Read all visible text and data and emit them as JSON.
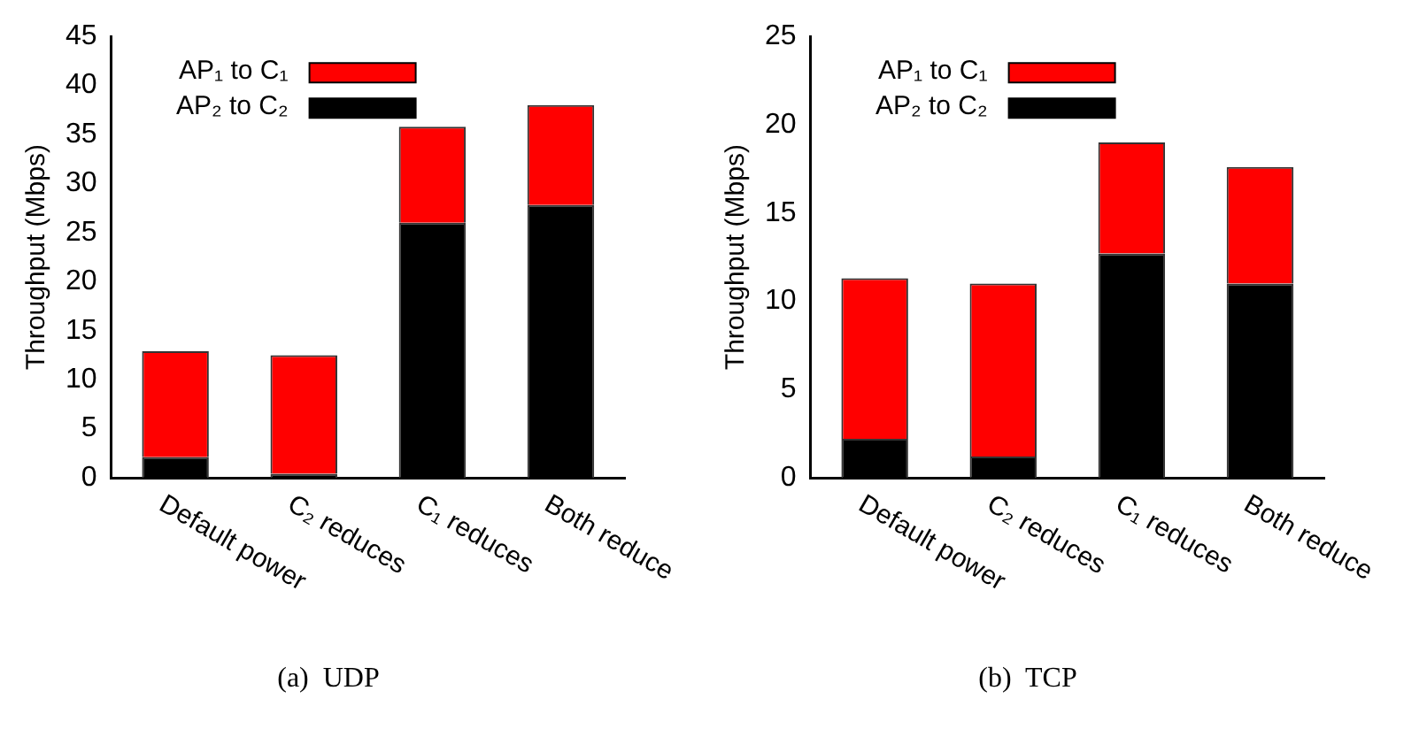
{
  "chart_data": [
    {
      "type": "bar",
      "stacked": true,
      "ylabel": "Throughput (Mbps)",
      "categories": [
        "Default power",
        "C₂ reduces",
        "C₁ reduces",
        "Both reduce"
      ],
      "ylim": [
        0,
        45
      ],
      "yticks": [
        0,
        5,
        10,
        15,
        20,
        25,
        30,
        35,
        40,
        45
      ],
      "grid": false,
      "legend": "top left",
      "annotations": [
        "(a)  UDP"
      ],
      "series": [
        {
          "name": "AP₂ to C₂",
          "color": "#000000",
          "values": [
            2.1,
            0.4,
            26,
            27.8
          ]
        },
        {
          "name": "AP₁ to C₁",
          "color": "#ff0000",
          "values": [
            10.8,
            12.1,
            9.8,
            10.2
          ]
        }
      ]
    },
    {
      "type": "bar",
      "stacked": true,
      "ylabel": "Throughput (Mbps)",
      "categories": [
        "Default power",
        "C₂ reduces",
        "C₁ reduces",
        "Both reduce"
      ],
      "ylim": [
        0,
        25
      ],
      "yticks": [
        0,
        5,
        10,
        15,
        20,
        25
      ],
      "grid": false,
      "legend": "top left",
      "annotations": [
        "(b)  TCP"
      ],
      "series": [
        {
          "name": "AP₂ to C₂",
          "color": "#000000",
          "values": [
            2.2,
            1.2,
            12.7,
            11
          ]
        },
        {
          "name": "AP₁ to C₁",
          "color": "#ff0000",
          "values": [
            9.1,
            9.8,
            6.3,
            6.6
          ]
        }
      ]
    }
  ]
}
